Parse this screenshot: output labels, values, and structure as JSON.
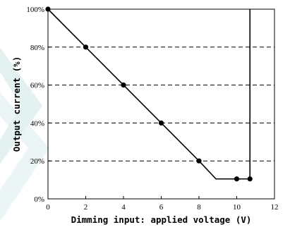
{
  "chart_data": {
    "type": "line",
    "xlabel": "Dimming input: applied voltage (V)",
    "ylabel": "Output current (%)",
    "xlim": [
      0,
      12
    ],
    "ylim": [
      0,
      100
    ],
    "x_ticks": [
      0,
      2,
      4,
      6,
      8,
      10,
      12
    ],
    "y_ticks": [
      0,
      20,
      40,
      60,
      80,
      100
    ],
    "x_tick_labels": [
      "0",
      "2",
      "4",
      "6",
      "8",
      "10",
      "12"
    ],
    "y_tick_labels": [
      "0%",
      "20%",
      "40%",
      "60%",
      "80%",
      "100%"
    ],
    "grid": "horizontal dashed",
    "series": [
      {
        "line": {
          "x": [
            0,
            8,
            8.9,
            10.7,
            10.7
          ],
          "y": [
            100,
            20,
            10.5,
            10.5,
            100
          ]
        },
        "markers": {
          "x": [
            0,
            2,
            4,
            6,
            8,
            10,
            10.7
          ],
          "y": [
            100,
            80,
            60,
            40,
            20,
            10.5,
            10.5
          ]
        },
        "color": "#000000"
      }
    ],
    "background_watermark_color": "#e3f1f1"
  }
}
